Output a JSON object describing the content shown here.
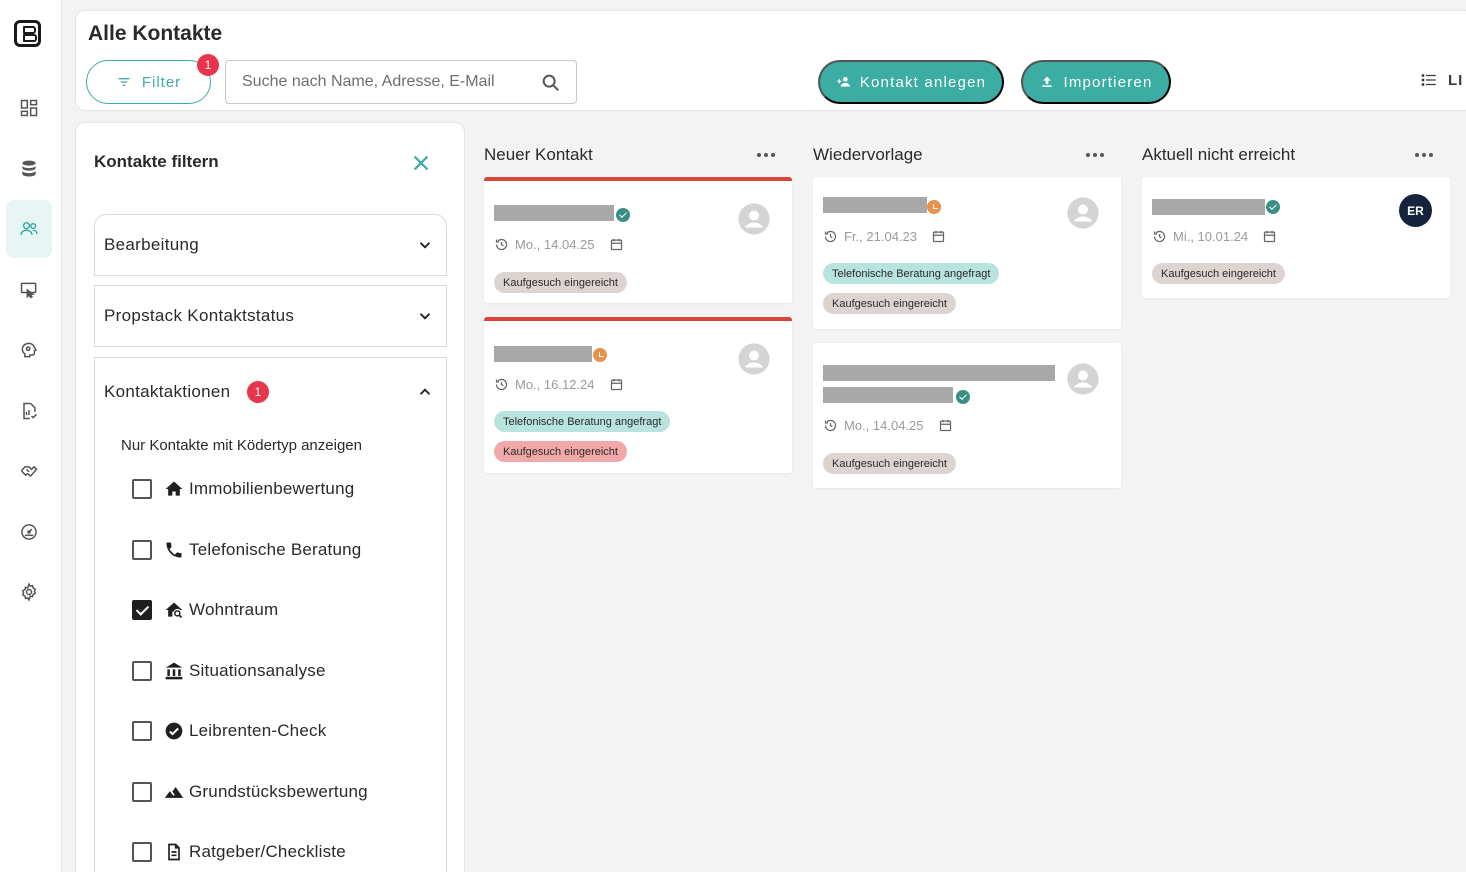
{
  "header": {
    "title": "Alle Kontakte",
    "filter_label": "Filter",
    "filter_badge": "1",
    "search_placeholder": "Suche nach Name, Adresse, E-Mail",
    "add_contact_label": "Kontakt anlegen",
    "import_label": "Importieren",
    "view_toggle_label": "LI"
  },
  "sidebar": {
    "items": [
      {
        "icon": "dashboard-icon"
      },
      {
        "icon": "database-icon"
      },
      {
        "icon": "contacts-icon",
        "active": true
      },
      {
        "icon": "screen-touch-icon"
      },
      {
        "icon": "brain-icon"
      },
      {
        "icon": "report-icon"
      },
      {
        "icon": "handshake-icon"
      },
      {
        "icon": "speedometer-icon"
      },
      {
        "icon": "settings-icon"
      }
    ]
  },
  "filter_panel": {
    "title": "Kontakte filtern",
    "sections": [
      {
        "label": "Bearbeitung",
        "expanded": false
      },
      {
        "label": "Propstack Kontaktstatus",
        "expanded": false
      },
      {
        "label": "Kontaktaktionen",
        "expanded": true,
        "badge": "1"
      }
    ],
    "subtitle": "Nur Kontakte mit Ködertyp anzeigen",
    "options": [
      {
        "label": "Immobilienbewertung",
        "icon": "home-icon",
        "checked": false
      },
      {
        "label": "Telefonische Beratung",
        "icon": "phone-icon",
        "checked": false
      },
      {
        "label": "Wohntraum",
        "icon": "home-search-icon",
        "checked": true
      },
      {
        "label": "Situationsanalyse",
        "icon": "bank-icon",
        "checked": false
      },
      {
        "label": "Leibrenten-Check",
        "icon": "check-circle-icon",
        "checked": false
      },
      {
        "label": "Grundstücksbewertung",
        "icon": "landscape-icon",
        "checked": false
      },
      {
        "label": "Ratgeber/Checkliste",
        "icon": "document-icon",
        "checked": false
      }
    ]
  },
  "columns": [
    {
      "title": "Neuer Kontakt",
      "cards": [
        {
          "status": "verified",
          "date": "Mo., 14.04.25",
          "tags": [
            {
              "label": "Kaufgesuch eingereicht",
              "color": "#ddd4d1"
            }
          ],
          "avatar": "placeholder"
        },
        {
          "status": "pending",
          "date": "Mo., 16.12.24",
          "tags": [
            {
              "label": "Telefonische Beratung angefragt",
              "color": "#b9e3df"
            },
            {
              "label": "Kaufgesuch eingereicht",
              "color": "#f1a8a8"
            }
          ],
          "avatar": "placeholder"
        }
      ]
    },
    {
      "title": "Wiedervorlage",
      "cards": [
        {
          "status": "pending",
          "date": "Fr., 21.04.23",
          "tags": [
            {
              "label": "Telefonische Beratung angefragt",
              "color": "#b9e3df"
            },
            {
              "label": "Kaufgesuch eingereicht",
              "color": "#ddd4d1"
            }
          ],
          "avatar": "placeholder"
        },
        {
          "status": "verified",
          "date": "Mo., 14.04.25",
          "tags": [
            {
              "label": "Kaufgesuch eingereicht",
              "color": "#ddd4d1"
            }
          ],
          "avatar": "placeholder"
        }
      ]
    },
    {
      "title": "Aktuell nicht erreicht",
      "cards": [
        {
          "status": "verified",
          "date": "Mi., 10.01.24",
          "tags": [
            {
              "label": "Kaufgesuch eingereicht",
              "color": "#ddd4d1"
            }
          ],
          "avatar": "ER"
        }
      ]
    }
  ],
  "colors": {
    "accent": "#3cada3",
    "badge": "#e8344d",
    "card_top_border": "#d9443b",
    "avatar_er": "#16233d"
  }
}
